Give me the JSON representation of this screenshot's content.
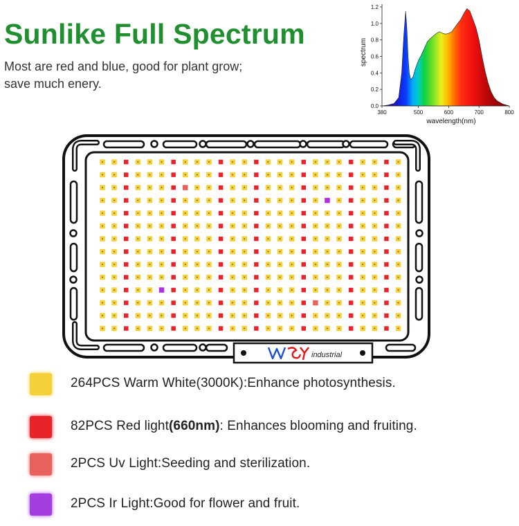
{
  "header": {
    "title": "Sunlike Full Spectrum",
    "subtitle_line1": "Most are red and blue, good for plant grow;",
    "subtitle_line2": "save much enery."
  },
  "chart_data": {
    "type": "area",
    "xlabel": "wavelength(nm)",
    "ylabel": "spectrum",
    "xlim": [
      380,
      800
    ],
    "ylim": [
      0,
      1.2
    ],
    "x_ticks": [
      380,
      500,
      600,
      700,
      800
    ],
    "y_ticks": [
      "0.0",
      "0.2",
      "0.4",
      "0.6",
      "0.8",
      "1.0",
      "1.2"
    ],
    "grid": false,
    "legend": "none",
    "series": [
      {
        "x": [
          380,
          400,
          420,
          435,
          445,
          452,
          458,
          462,
          466,
          470,
          475,
          482,
          490,
          500,
          510,
          520,
          530,
          540,
          550,
          560,
          570,
          580,
          590,
          600,
          610,
          620,
          630,
          640,
          650,
          660,
          670,
          680,
          690,
          700,
          710,
          720,
          730,
          740,
          750,
          760,
          780,
          800
        ],
        "values": [
          0.0,
          0.01,
          0.03,
          0.1,
          0.4,
          0.85,
          1.15,
          0.95,
          0.6,
          0.4,
          0.32,
          0.35,
          0.45,
          0.55,
          0.62,
          0.7,
          0.78,
          0.82,
          0.85,
          0.88,
          0.9,
          0.88,
          0.87,
          0.88,
          0.9,
          0.95,
          1.0,
          1.05,
          1.12,
          1.18,
          1.15,
          1.05,
          0.95,
          0.8,
          0.6,
          0.42,
          0.28,
          0.17,
          0.1,
          0.06,
          0.02,
          0.0
        ]
      }
    ]
  },
  "panel": {
    "brand_text": "industrial"
  },
  "legend": {
    "items": [
      {
        "color": "#f4d13a",
        "text": "264PCS Warm White(3000K):Enhance photosynthesis.",
        "bold": "",
        "suffix": ""
      },
      {
        "color": "#e8242a",
        "text": "82PCS Red light",
        "bold": "(660nm)",
        "suffix": ": Enhances blooming and fruiting."
      },
      {
        "color": "#e8615c",
        "text": "2PCS Uv Light:Seeding and sterilization.",
        "bold": "",
        "suffix": ""
      },
      {
        "color": "#a43ee0",
        "text": "2PCS Ir Light:Good for flower and fruit.",
        "bold": "",
        "suffix": ""
      }
    ]
  },
  "colors": {
    "title_green": "#1f8f2f",
    "warm_white": "#f4d13a",
    "red": "#e8242a",
    "uv": "#e8615c",
    "ir": "#b030e0"
  }
}
